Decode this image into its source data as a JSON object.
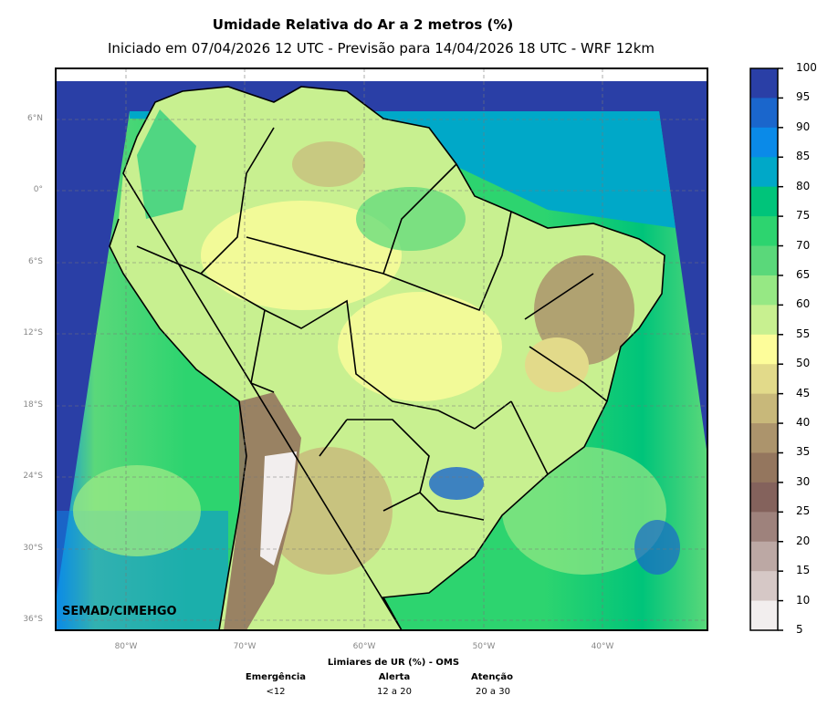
{
  "title": "Umidade Relativa do Ar a 2 metros (%)",
  "subtitle": "Iniciado em 07/04/2026 12 UTC - Previsão para 14/04/2026 18 UTC - WRF 12km",
  "credit": "SEMAD/CIMEHGO",
  "lat_labels": [
    "6°N",
    "0°",
    "6°S",
    "12°S",
    "18°S",
    "24°S",
    "30°S",
    "36°S"
  ],
  "lon_labels": [
    "80°W",
    "70°W",
    "60°W",
    "50°W",
    "40°W"
  ],
  "colorbar": {
    "ticks": [
      "100",
      "95",
      "90",
      "85",
      "80",
      "75",
      "70",
      "65",
      "60",
      "55",
      "50",
      "45",
      "40",
      "35",
      "30",
      "25",
      "20",
      "15",
      "10",
      "5"
    ],
    "colors": [
      "#2a3fa6",
      "#1a66cc",
      "#0a8ae8",
      "#00a8c8",
      "#00c47a",
      "#2dd46f",
      "#5ad87a",
      "#96e884",
      "#c8f090",
      "#fdfd9a",
      "#e2da8a",
      "#c8b87a",
      "#ac946c",
      "#94765e",
      "#84625c",
      "#9e827c",
      "#bca8a4",
      "#d6c8c6",
      "#f2eeee"
    ]
  },
  "thresholds": {
    "title": "Limiares de UR (%) - OMS",
    "items": [
      {
        "label": "Emergência",
        "value": "<12"
      },
      {
        "label": "Alerta",
        "value": "12 a 20"
      },
      {
        "label": "Atenção",
        "value": "20 a 30"
      }
    ]
  }
}
